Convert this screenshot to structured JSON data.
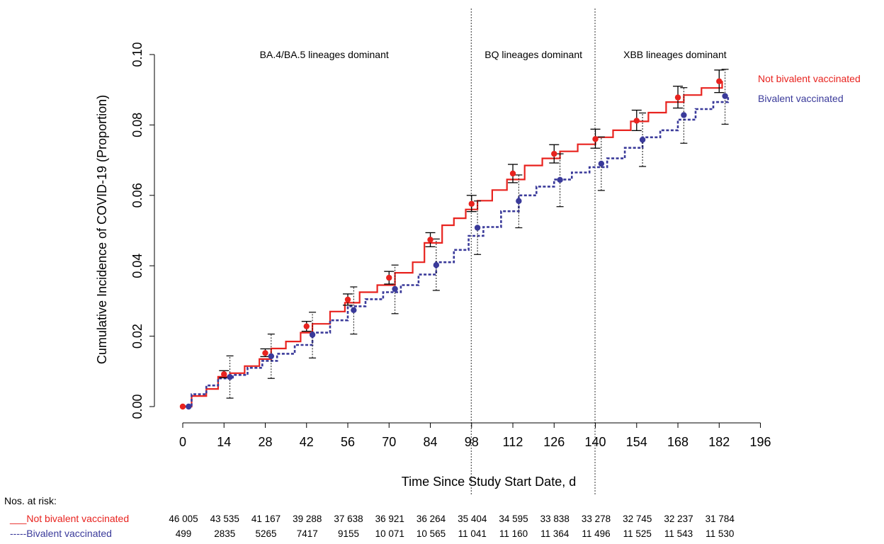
{
  "chart_data": {
    "type": "line",
    "xlabel": "Time Since Study Start Date, d",
    "ylabel": "Cumulative Incidence of COVID-19 (Proportion)",
    "xlim": [
      0,
      196
    ],
    "ylim": [
      0,
      0.1
    ],
    "x_ticks": [
      0,
      14,
      28,
      42,
      56,
      70,
      84,
      98,
      112,
      126,
      140,
      154,
      168,
      182,
      196
    ],
    "y_ticks": [
      0,
      0.02,
      0.04,
      0.06,
      0.08,
      0.1
    ],
    "y_tick_labels": [
      "0.00",
      "0.02",
      "0.04",
      "0.06",
      "0.08",
      "0.10"
    ],
    "grid": false,
    "legend_position": "top-right",
    "vertical_lines": [
      98,
      140
    ],
    "period_labels": [
      {
        "text": "BA.4/BA.5 lineages dominant",
        "x_center": 48
      },
      {
        "text": "BQ lineages dominant",
        "x_center": 119
      },
      {
        "text": "XBB lineages dominant",
        "x_center": 167
      }
    ],
    "series": [
      {
        "name": "Not bivalent vaccinated",
        "color": "#e8231f",
        "line_style": "solid",
        "curve": [
          [
            0,
            0
          ],
          [
            3,
            0.003
          ],
          [
            8,
            0.005
          ],
          [
            12,
            0.0085
          ],
          [
            16,
            0.0095
          ],
          [
            21,
            0.0115
          ],
          [
            26,
            0.0135
          ],
          [
            30,
            0.0165
          ],
          [
            35,
            0.0185
          ],
          [
            40,
            0.021
          ],
          [
            44,
            0.0235
          ],
          [
            50,
            0.027
          ],
          [
            55,
            0.0295
          ],
          [
            60,
            0.0325
          ],
          [
            66,
            0.0345
          ],
          [
            72,
            0.038
          ],
          [
            78,
            0.041
          ],
          [
            82,
            0.0465
          ],
          [
            88,
            0.0515
          ],
          [
            92,
            0.0535
          ],
          [
            96,
            0.056
          ],
          [
            100,
            0.0585
          ],
          [
            105,
            0.0615
          ],
          [
            110,
            0.0645
          ],
          [
            116,
            0.0685
          ],
          [
            122,
            0.0705
          ],
          [
            128,
            0.0725
          ],
          [
            134,
            0.0745
          ],
          [
            140,
            0.0765
          ],
          [
            146,
            0.0785
          ],
          [
            152,
            0.081
          ],
          [
            158,
            0.0835
          ],
          [
            164,
            0.0865
          ],
          [
            170,
            0.0885
          ],
          [
            176,
            0.0905
          ],
          [
            183,
            0.0925
          ]
        ],
        "points": [
          {
            "x": 0,
            "y": 0.0,
            "lo": 0.0,
            "hi": 0.0
          },
          {
            "x": 14,
            "y": 0.0092,
            "lo": 0.0082,
            "hi": 0.0102
          },
          {
            "x": 28,
            "y": 0.0152,
            "lo": 0.0142,
            "hi": 0.0164
          },
          {
            "x": 42,
            "y": 0.0228,
            "lo": 0.0214,
            "hi": 0.0242
          },
          {
            "x": 56,
            "y": 0.0304,
            "lo": 0.0288,
            "hi": 0.032
          },
          {
            "x": 70,
            "y": 0.0366,
            "lo": 0.0348,
            "hi": 0.0384
          },
          {
            "x": 84,
            "y": 0.0474,
            "lo": 0.0454,
            "hi": 0.0494
          },
          {
            "x": 98,
            "y": 0.0576,
            "lo": 0.0554,
            "hi": 0.06
          },
          {
            "x": 112,
            "y": 0.0662,
            "lo": 0.0636,
            "hi": 0.0688
          },
          {
            "x": 126,
            "y": 0.0718,
            "lo": 0.0692,
            "hi": 0.0744
          },
          {
            "x": 140,
            "y": 0.076,
            "lo": 0.0734,
            "hi": 0.0788
          },
          {
            "x": 154,
            "y": 0.0812,
            "lo": 0.0784,
            "hi": 0.0842
          },
          {
            "x": 168,
            "y": 0.0878,
            "lo": 0.0848,
            "hi": 0.091
          },
          {
            "x": 182,
            "y": 0.0924,
            "lo": 0.0892,
            "hi": 0.0956
          }
        ]
      },
      {
        "name": "Bivalent vaccinated",
        "color": "#3a3a9a",
        "line_style": "dashed",
        "curve": [
          [
            0,
            0
          ],
          [
            3,
            0.0035
          ],
          [
            8,
            0.006
          ],
          [
            12,
            0.008
          ],
          [
            17,
            0.009
          ],
          [
            22,
            0.011
          ],
          [
            27,
            0.013
          ],
          [
            32,
            0.015
          ],
          [
            38,
            0.0175
          ],
          [
            44,
            0.021
          ],
          [
            50,
            0.0245
          ],
          [
            56,
            0.0285
          ],
          [
            62,
            0.0305
          ],
          [
            68,
            0.0325
          ],
          [
            74,
            0.0345
          ],
          [
            80,
            0.0375
          ],
          [
            86,
            0.041
          ],
          [
            92,
            0.0445
          ],
          [
            97,
            0.0485
          ],
          [
            102,
            0.051
          ],
          [
            108,
            0.0555
          ],
          [
            114,
            0.06
          ],
          [
            120,
            0.0625
          ],
          [
            126,
            0.0645
          ],
          [
            132,
            0.0665
          ],
          [
            138,
            0.068
          ],
          [
            144,
            0.0705
          ],
          [
            150,
            0.0735
          ],
          [
            156,
            0.0765
          ],
          [
            162,
            0.0785
          ],
          [
            168,
            0.0815
          ],
          [
            174,
            0.0845
          ],
          [
            180,
            0.0865
          ],
          [
            185,
            0.088
          ]
        ],
        "points": [
          {
            "x": 2,
            "y": 0.0,
            "lo": 0.0,
            "hi": 0.0
          },
          {
            "x": 16,
            "y": 0.0084,
            "lo": 0.0024,
            "hi": 0.0144
          },
          {
            "x": 30,
            "y": 0.0143,
            "lo": 0.008,
            "hi": 0.0206
          },
          {
            "x": 44,
            "y": 0.0204,
            "lo": 0.0138,
            "hi": 0.0268
          },
          {
            "x": 58,
            "y": 0.0274,
            "lo": 0.0206,
            "hi": 0.034
          },
          {
            "x": 72,
            "y": 0.0334,
            "lo": 0.0264,
            "hi": 0.0402
          },
          {
            "x": 86,
            "y": 0.0402,
            "lo": 0.033,
            "hi": 0.0476
          },
          {
            "x": 100,
            "y": 0.0508,
            "lo": 0.0432,
            "hi": 0.0584
          },
          {
            "x": 114,
            "y": 0.0584,
            "lo": 0.0508,
            "hi": 0.0658
          },
          {
            "x": 128,
            "y": 0.0644,
            "lo": 0.0568,
            "hi": 0.0718
          },
          {
            "x": 142,
            "y": 0.069,
            "lo": 0.0614,
            "hi": 0.0766
          },
          {
            "x": 156,
            "y": 0.0758,
            "lo": 0.0682,
            "hi": 0.0834
          },
          {
            "x": 170,
            "y": 0.0828,
            "lo": 0.0748,
            "hi": 0.0906
          },
          {
            "x": 184,
            "y": 0.0882,
            "lo": 0.0802,
            "hi": 0.0958
          }
        ]
      }
    ],
    "risk_table": {
      "title": "Nos. at risk:",
      "rows": [
        {
          "label": "___Not bivalent vaccinated",
          "color": "#e8231f",
          "values": [
            "46 005",
            "43 535",
            "41 167",
            "39 288",
            "37 638",
            "36 921",
            "36 264",
            "35 404",
            "34 595",
            "33 838",
            "33 278",
            "32 745",
            "32 237",
            "31 784"
          ]
        },
        {
          "label": "-----Bivalent vaccinated",
          "color": "#3a3a9a",
          "values": [
            "499",
            "2835",
            "5265",
            "7417",
            "9155",
            "10 071",
            "10 565",
            "11 041",
            "11 160",
            "11 364",
            "11 496",
            "11 525",
            "11 543",
            "11 530"
          ]
        }
      ]
    }
  }
}
